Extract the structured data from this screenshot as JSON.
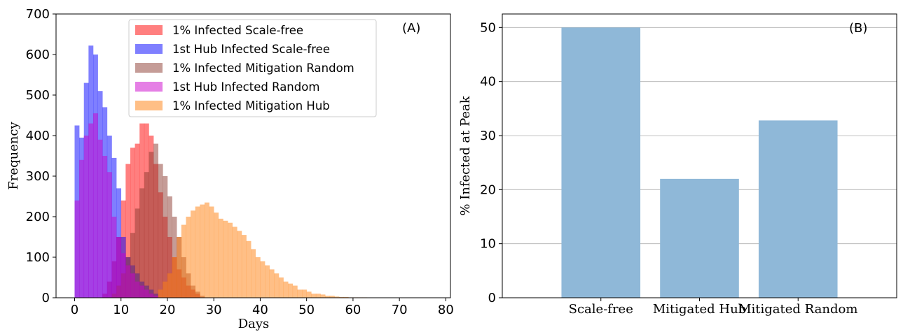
{
  "chart_data": [
    {
      "type": "histogram",
      "panel_tag": "(A)",
      "xlabel": "Days",
      "ylabel": "Frequency",
      "xlim": [
        -4,
        81
      ],
      "ylim": [
        0,
        700
      ],
      "xticks": [
        0,
        10,
        20,
        30,
        40,
        50,
        60,
        70,
        80
      ],
      "yticks": [
        0,
        100,
        200,
        300,
        400,
        500,
        600,
        700
      ],
      "bin_width": 1,
      "legend_position": "upper-center",
      "series": [
        {
          "name": "1% Infected Scale-free",
          "color": "#ff0000",
          "opacity": 0.5,
          "start": 6,
          "values": [
            10,
            40,
            90,
            150,
            240,
            330,
            370,
            380,
            430,
            430,
            400,
            330,
            260,
            200,
            150,
            100,
            70,
            50,
            30,
            20,
            10
          ]
        },
        {
          "name": "1st Hub Infected Scale-free",
          "color": "#0000ff",
          "opacity": 0.5,
          "start": 0,
          "values": [
            425,
            395,
            530,
            622,
            600,
            510,
            470,
            400,
            345,
            270,
            150,
            100,
            80,
            60,
            40,
            30,
            20,
            10
          ]
        },
        {
          "name": "1% Infected Mitigation Random",
          "color": "#8b3a30",
          "opacity": 0.5,
          "start": 8,
          "values": [
            10,
            30,
            60,
            100,
            160,
            220,
            270,
            310,
            360,
            380,
            330,
            300,
            250,
            200,
            150,
            100,
            60,
            30,
            15,
            5
          ]
        },
        {
          "name": "1st Hub Infected Random",
          "color": "#cc00cc",
          "opacity": 0.5,
          "start": 0,
          "values": [
            240,
            340,
            400,
            430,
            455,
            390,
            350,
            310,
            200,
            150,
            110,
            80,
            60,
            40,
            30,
            20,
            10,
            5
          ]
        },
        {
          "name": "1% Infected Mitigation Hub",
          "color": "#ff7f0e",
          "opacity": 0.5,
          "start": 18,
          "values": [
            20,
            40,
            60,
            100,
            150,
            180,
            200,
            215,
            225,
            230,
            235,
            225,
            210,
            195,
            190,
            185,
            175,
            165,
            155,
            140,
            120,
            100,
            90,
            80,
            70,
            60,
            50,
            40,
            35,
            30,
            20,
            20,
            15,
            10,
            10,
            8,
            5,
            5,
            3,
            2,
            2,
            1,
            1,
            1,
            1
          ]
        }
      ]
    },
    {
      "type": "bar",
      "panel_tag": "(B)",
      "xlabel": "",
      "ylabel": "% Infected at Peak",
      "ylim": [
        0,
        52.5
      ],
      "yticks": [
        0,
        10,
        20,
        30,
        40,
        50
      ],
      "grid": "horizontal",
      "color": "#8fb8d8",
      "categories": [
        "Scale-free",
        "Mitigated Hub",
        "Mitigated Random"
      ],
      "values": [
        50,
        22,
        32.8
      ]
    }
  ]
}
